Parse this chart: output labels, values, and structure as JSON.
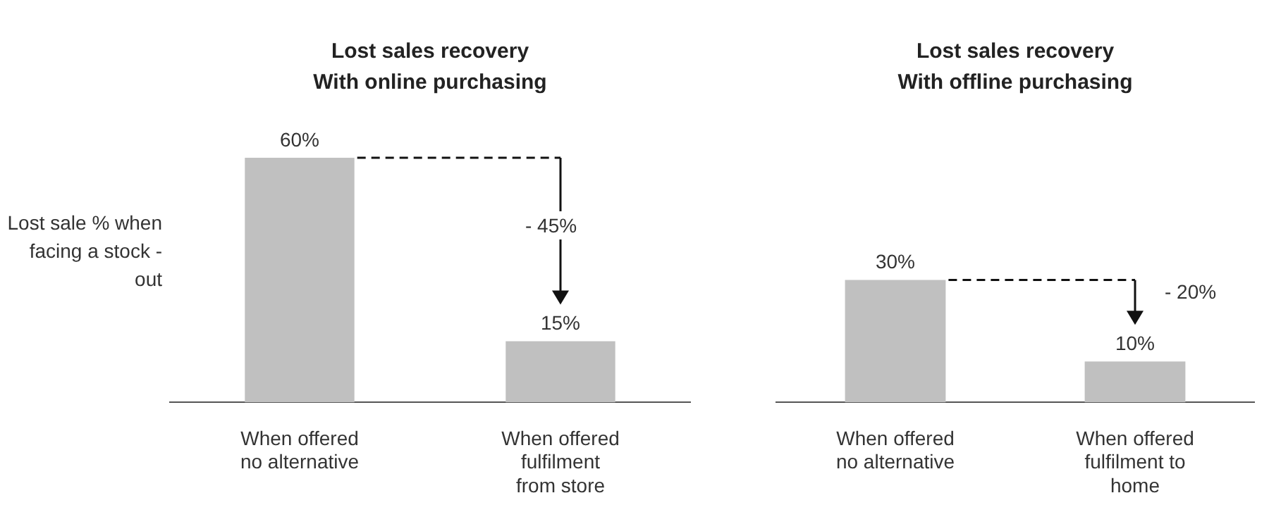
{
  "chart_data": [
    {
      "type": "bar",
      "title": "Lost sales recovery",
      "subtitle": "With online purchasing",
      "ylabel": "Lost sale % when facing a stock - out",
      "categories": [
        "When offered\nno alternative",
        "When offered\nfulfilment\nfrom store"
      ],
      "values": [
        60,
        15
      ],
      "value_labels": [
        "60%",
        "15%"
      ],
      "color": "#c0c0c0",
      "annotations": [
        "- 45%"
      ],
      "grid": false,
      "legend": false,
      "tick_labels": "x"
    },
    {
      "type": "bar",
      "title": "Lost sales recovery",
      "subtitle": "With offline purchasing",
      "categories": [
        "When offered\nno alternative",
        "When offered\nfulfilment to\nhome"
      ],
      "values": [
        30,
        10
      ],
      "value_labels": [
        "30%",
        "10%"
      ],
      "color": "#c0c0c0",
      "annotations": [
        "- 20%"
      ],
      "grid": false,
      "legend": false,
      "tick_labels": "x"
    }
  ]
}
